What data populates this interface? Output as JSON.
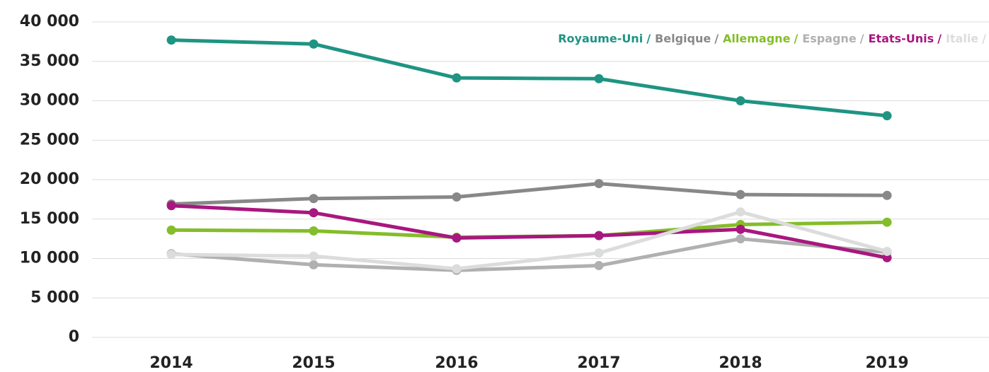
{
  "chart_data": {
    "type": "line",
    "categories": [
      "2014",
      "2015",
      "2016",
      "2017",
      "2018",
      "2019"
    ],
    "series": [
      {
        "name": "Royaume-Uni",
        "color": "#1f9483",
        "values": [
          37700,
          37200,
          32900,
          32800,
          30000,
          28100
        ]
      },
      {
        "name": "Belgique",
        "color": "#888888",
        "values": [
          16900,
          17600,
          17800,
          19500,
          18100,
          18000
        ]
      },
      {
        "name": "Allemagne",
        "color": "#84bd2a",
        "values": [
          13600,
          13500,
          12700,
          12900,
          14300,
          14600
        ]
      },
      {
        "name": "Espagne",
        "color": "#b0b0b0",
        "values": [
          10600,
          9200,
          8500,
          9100,
          12500,
          10800
        ]
      },
      {
        "name": "Etats-Unis",
        "color": "#a8177f",
        "values": [
          16700,
          15800,
          12600,
          12900,
          13700,
          10100
        ]
      },
      {
        "name": "Italie",
        "color": "#dcdcdc",
        "values": [
          10500,
          10300,
          8700,
          10700,
          15900,
          10900
        ]
      }
    ],
    "legend_separator": "/",
    "ylim": [
      0,
      40000
    ],
    "yticks": [
      0,
      {
        "value": 5000,
        "label": "5 000"
      },
      {
        "value": 10000,
        "label": "10 000"
      },
      {
        "value": 15000,
        "label": "15 000"
      },
      {
        "value": 20000,
        "label": "20 000"
      },
      {
        "value": 25000,
        "label": "25 000"
      },
      {
        "value": 30000,
        "label": "30 000"
      },
      {
        "value": 35000,
        "label": "35 000"
      },
      {
        "value": 40000,
        "label": "40 000"
      }
    ],
    "grid": true,
    "legend": "top-right"
  }
}
